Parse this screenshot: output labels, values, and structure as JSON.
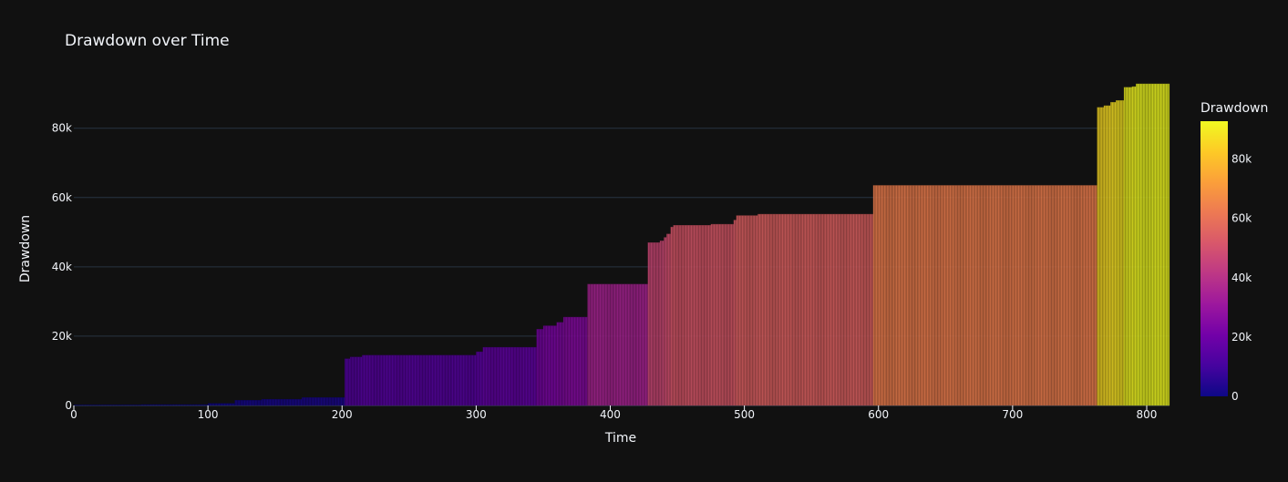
{
  "chart_data": {
    "type": "bar",
    "title": "Drawdown over Time",
    "xlabel": "Time",
    "ylabel": "Drawdown",
    "xlim": [
      0,
      817
    ],
    "ylim": [
      0,
      92800
    ],
    "x_ticks": [
      0,
      100,
      200,
      300,
      400,
      500,
      600,
      700,
      800
    ],
    "x_tick_labels": [
      "0",
      "100",
      "200",
      "300",
      "400",
      "500",
      "600",
      "700",
      "800"
    ],
    "y_ticks": [
      0,
      20000,
      40000,
      60000,
      80000
    ],
    "y_tick_labels": [
      "0",
      "20k",
      "40k",
      "60k",
      "80k"
    ],
    "grid": true,
    "colorbar": {
      "title": "Drawdown",
      "min": 0,
      "max": 92800,
      "ticks": [
        0,
        20000,
        40000,
        60000,
        80000
      ],
      "tick_labels": [
        "0",
        "20k",
        "40k",
        "60k",
        "80k"
      ],
      "colorscale": "plasma"
    },
    "segments": [
      {
        "x_start": 0,
        "x_end": 50,
        "value": 0
      },
      {
        "x_start": 50,
        "x_end": 100,
        "value": 250
      },
      {
        "x_start": 100,
        "x_end": 120,
        "value": 600
      },
      {
        "x_start": 120,
        "x_end": 140,
        "value": 1500
      },
      {
        "x_start": 140,
        "x_end": 170,
        "value": 1800
      },
      {
        "x_start": 170,
        "x_end": 202,
        "value": 2300
      },
      {
        "x_start": 202,
        "x_end": 206,
        "value": 13500
      },
      {
        "x_start": 206,
        "x_end": 215,
        "value": 14000
      },
      {
        "x_start": 215,
        "x_end": 300,
        "value": 14500
      },
      {
        "x_start": 300,
        "x_end": 305,
        "value": 15500
      },
      {
        "x_start": 305,
        "x_end": 345,
        "value": 16800
      },
      {
        "x_start": 345,
        "x_end": 350,
        "value": 22000
      },
      {
        "x_start": 350,
        "x_end": 360,
        "value": 23000
      },
      {
        "x_start": 360,
        "x_end": 365,
        "value": 24000
      },
      {
        "x_start": 365,
        "x_end": 383,
        "value": 25500
      },
      {
        "x_start": 383,
        "x_end": 428,
        "value": 35000
      },
      {
        "x_start": 428,
        "x_end": 437,
        "value": 47000
      },
      {
        "x_start": 437,
        "x_end": 440,
        "value": 47500
      },
      {
        "x_start": 440,
        "x_end": 442,
        "value": 48500
      },
      {
        "x_start": 442,
        "x_end": 445,
        "value": 49500
      },
      {
        "x_start": 445,
        "x_end": 447,
        "value": 51500
      },
      {
        "x_start": 447,
        "x_end": 475,
        "value": 52000
      },
      {
        "x_start": 475,
        "x_end": 492,
        "value": 52300
      },
      {
        "x_start": 492,
        "x_end": 494,
        "value": 53500
      },
      {
        "x_start": 494,
        "x_end": 510,
        "value": 54800
      },
      {
        "x_start": 510,
        "x_end": 596,
        "value": 55200
      },
      {
        "x_start": 596,
        "x_end": 763,
        "value": 63500
      },
      {
        "x_start": 763,
        "x_end": 768,
        "value": 86000
      },
      {
        "x_start": 768,
        "x_end": 773,
        "value": 86500
      },
      {
        "x_start": 773,
        "x_end": 777,
        "value": 87500
      },
      {
        "x_start": 777,
        "x_end": 783,
        "value": 88000
      },
      {
        "x_start": 783,
        "x_end": 789,
        "value": 91800
      },
      {
        "x_start": 789,
        "x_end": 792,
        "value": 92000
      },
      {
        "x_start": 792,
        "x_end": 817,
        "value": 92800
      }
    ]
  }
}
